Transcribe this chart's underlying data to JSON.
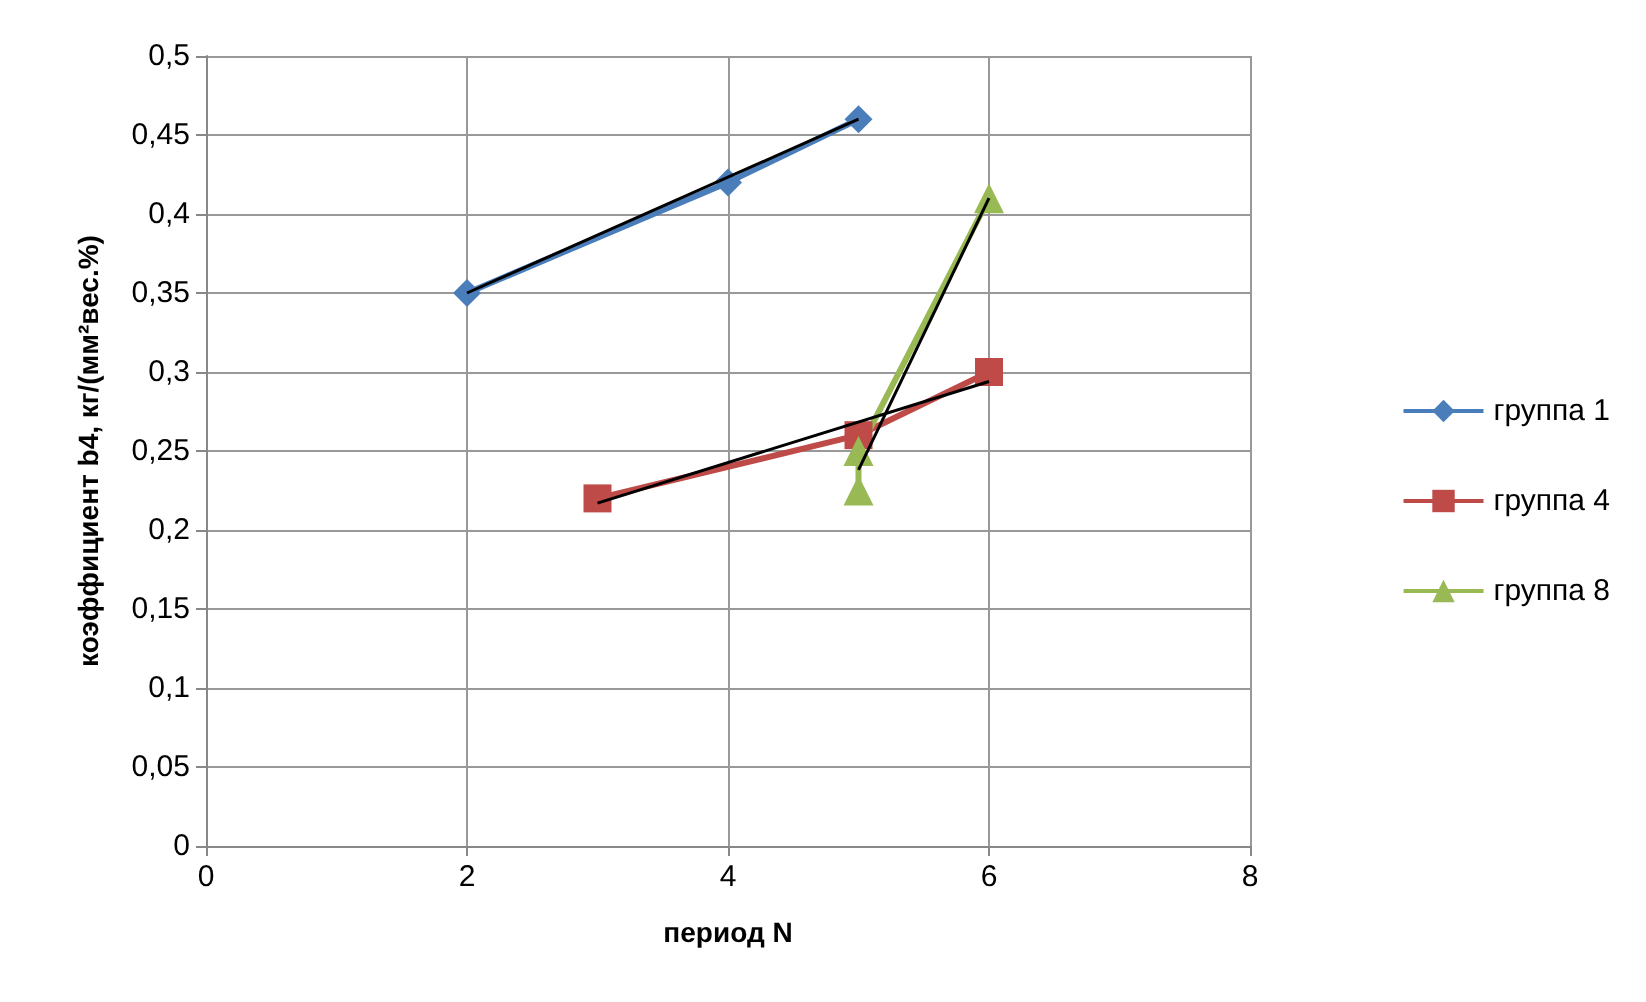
{
  "chart_data": {
    "type": "line",
    "xlabel": "период N",
    "ylabel": "коэффициент b4, кг/(мм²вес.%)",
    "xlim": [
      0,
      8
    ],
    "xticks": [
      0,
      2,
      4,
      6,
      8
    ],
    "ylim": [
      0,
      0.5
    ],
    "yticks": [
      0,
      {
        "value": 0.05,
        "label": "0,05"
      },
      {
        "value": 0.1,
        "label": "0,1"
      },
      {
        "value": 0.15,
        "label": "0,15"
      },
      {
        "value": 0.2,
        "label": "0,2"
      },
      {
        "value": 0.25,
        "label": "0,25"
      },
      {
        "value": 0.3,
        "label": "0,3"
      },
      {
        "value": 0.35,
        "label": "0,35"
      },
      {
        "value": 0.4,
        "label": "0,4"
      },
      {
        "value": 0.45,
        "label": "0,45"
      },
      {
        "value": 0.5,
        "label": "0,5"
      }
    ],
    "grid": true,
    "legend": "right",
    "series": [
      {
        "name": "группа 1",
        "color": "#4a7ebb",
        "marker": "diamond",
        "x": [
          2,
          4,
          5
        ],
        "values": [
          0.35,
          0.42,
          0.46
        ]
      },
      {
        "name": "группа 4",
        "color": "#be4b48",
        "marker": "square",
        "x": [
          3,
          5,
          6
        ],
        "values": [
          0.22,
          0.26,
          0.3
        ]
      },
      {
        "name": "группа 8",
        "color": "#98b954",
        "marker": "triangle",
        "x": [
          5,
          5,
          6
        ],
        "values": [
          0.225,
          0.25,
          0.41
        ]
      },
      {
        "color": "#000000",
        "marker": "none",
        "x": [
          2,
          5
        ],
        "values": [
          0.35,
          0.46
        ]
      },
      {
        "color": "#000000",
        "marker": "none",
        "x": [
          3,
          6
        ],
        "values": [
          0.217,
          0.294
        ]
      },
      {
        "color": "#000000",
        "marker": "none",
        "x": [
          5,
          6
        ],
        "values": [
          0.238,
          0.41
        ]
      }
    ]
  }
}
